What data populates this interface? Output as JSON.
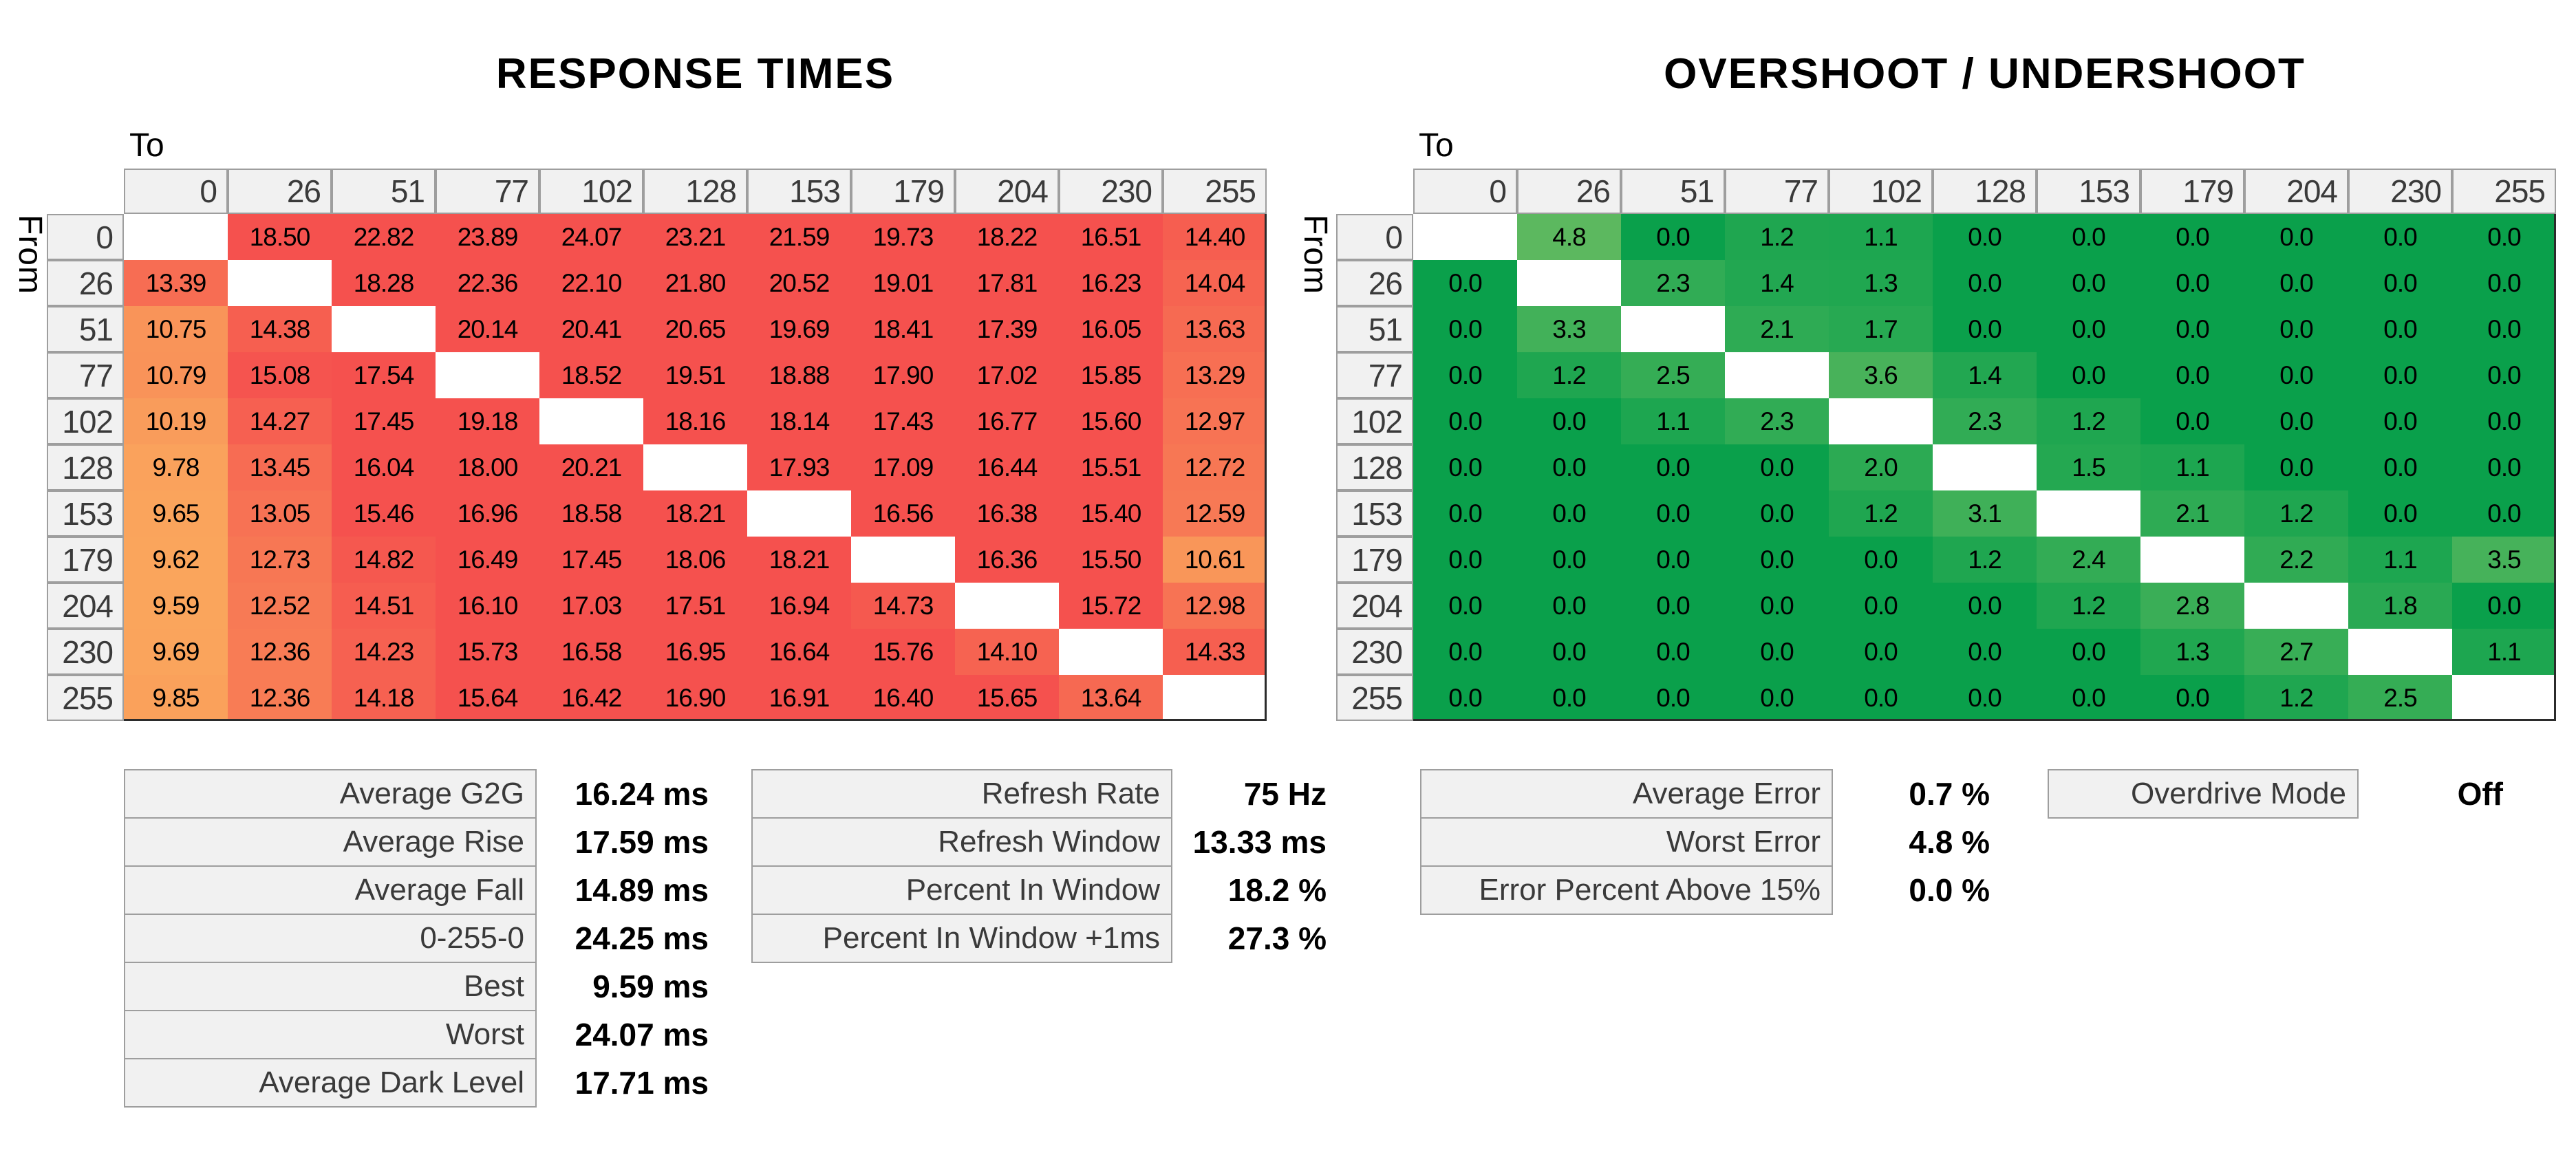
{
  "chart_data": [
    {
      "id": "response_times",
      "type": "heatmap",
      "title": "RESPONSE TIMES",
      "unit": "ms",
      "decimals": 2,
      "x_label": "To",
      "y_label": "From",
      "categories": [
        0,
        26,
        51,
        77,
        102,
        128,
        153,
        179,
        204,
        230,
        255
      ],
      "values": [
        [
          null,
          18.5,
          22.82,
          23.89,
          24.07,
          23.21,
          21.59,
          19.73,
          18.22,
          16.51,
          14.4
        ],
        [
          13.39,
          null,
          18.28,
          22.36,
          22.1,
          21.8,
          20.52,
          19.01,
          17.81,
          16.23,
          14.04
        ],
        [
          10.75,
          14.38,
          null,
          20.14,
          20.41,
          20.65,
          19.69,
          18.41,
          17.39,
          16.05,
          13.63
        ],
        [
          10.79,
          15.08,
          17.54,
          null,
          18.52,
          19.51,
          18.88,
          17.9,
          17.02,
          15.85,
          13.29
        ],
        [
          10.19,
          14.27,
          17.45,
          19.18,
          null,
          18.16,
          18.14,
          17.43,
          16.77,
          15.6,
          12.97
        ],
        [
          9.78,
          13.45,
          16.04,
          18.0,
          20.21,
          null,
          17.93,
          17.09,
          16.44,
          15.51,
          12.72
        ],
        [
          9.65,
          13.05,
          15.46,
          16.96,
          18.58,
          18.21,
          null,
          16.56,
          16.38,
          15.4,
          12.59
        ],
        [
          9.62,
          12.73,
          14.82,
          16.49,
          17.45,
          18.06,
          18.21,
          null,
          16.36,
          15.5,
          10.61
        ],
        [
          9.59,
          12.52,
          14.51,
          16.1,
          17.03,
          17.51,
          16.94,
          14.73,
          null,
          15.72,
          12.98
        ],
        [
          9.69,
          12.36,
          14.23,
          15.73,
          16.58,
          16.95,
          16.64,
          15.76,
          14.1,
          null,
          14.33
        ],
        [
          9.85,
          12.36,
          14.18,
          15.64,
          16.42,
          16.9,
          16.91,
          16.4,
          15.65,
          13.64,
          null
        ]
      ],
      "color_scale": {
        "min": 9.59,
        "max": 15.3,
        "from": "#FAA55C",
        "to": "#F5514E",
        "empty": "#FFFFFF"
      }
    },
    {
      "id": "overshoot_undershoot",
      "type": "heatmap",
      "title": "OVERSHOOT / UNDERSHOOT",
      "unit": "%",
      "decimals": 1,
      "x_label": "To",
      "y_label": "From",
      "categories": [
        0,
        26,
        51,
        77,
        102,
        128,
        153,
        179,
        204,
        230,
        255
      ],
      "values": [
        [
          null,
          4.8,
          0.0,
          1.2,
          1.1,
          0.0,
          0.0,
          0.0,
          0.0,
          0.0,
          0.0
        ],
        [
          0.0,
          null,
          2.3,
          1.4,
          1.3,
          0.0,
          0.0,
          0.0,
          0.0,
          0.0,
          0.0
        ],
        [
          0.0,
          3.3,
          null,
          2.1,
          1.7,
          0.0,
          0.0,
          0.0,
          0.0,
          0.0,
          0.0
        ],
        [
          0.0,
          1.2,
          2.5,
          null,
          3.6,
          1.4,
          0.0,
          0.0,
          0.0,
          0.0,
          0.0
        ],
        [
          0.0,
          0.0,
          1.1,
          2.3,
          null,
          2.3,
          1.2,
          0.0,
          0.0,
          0.0,
          0.0
        ],
        [
          0.0,
          0.0,
          0.0,
          0.0,
          2.0,
          null,
          1.5,
          1.1,
          0.0,
          0.0,
          0.0
        ],
        [
          0.0,
          0.0,
          0.0,
          0.0,
          1.2,
          3.1,
          null,
          2.1,
          1.2,
          0.0,
          0.0
        ],
        [
          0.0,
          0.0,
          0.0,
          0.0,
          0.0,
          1.2,
          2.4,
          null,
          2.2,
          1.1,
          3.5
        ],
        [
          0.0,
          0.0,
          0.0,
          0.0,
          0.0,
          0.0,
          1.2,
          2.8,
          null,
          1.8,
          0.0
        ],
        [
          0.0,
          0.0,
          0.0,
          0.0,
          0.0,
          0.0,
          0.0,
          1.3,
          2.7,
          null,
          1.1
        ],
        [
          0.0,
          0.0,
          0.0,
          0.0,
          0.0,
          0.0,
          0.0,
          0.0,
          1.2,
          2.5,
          null
        ]
      ],
      "color_scale": {
        "min": 0.0,
        "max": 4.8,
        "from": "#0AA04B",
        "to": "#5CB85F",
        "empty": "#FFFFFF"
      }
    }
  ],
  "stats_blocks": [
    {
      "id": "response_stats",
      "rows": [
        {
          "label": "Average G2G",
          "value": "16.24 ms"
        },
        {
          "label": "Average Rise",
          "value": "17.59 ms"
        },
        {
          "label": "Average Fall",
          "value": "14.89 ms"
        },
        {
          "label": "0-255-0",
          "value": "24.25 ms"
        },
        {
          "label": "Best",
          "value": "9.59 ms"
        },
        {
          "label": "Worst",
          "value": "24.07 ms"
        },
        {
          "label": "Average Dark Level",
          "value": "17.71 ms"
        }
      ]
    },
    {
      "id": "refresh_stats",
      "rows": [
        {
          "label": "Refresh Rate",
          "value": "75 Hz"
        },
        {
          "label": "Refresh Window",
          "value": "13.33 ms"
        },
        {
          "label": "Percent In Window",
          "value": "18.2 %"
        },
        {
          "label": "Percent In Window +1ms",
          "value": "27.3 %"
        }
      ]
    },
    {
      "id": "error_stats",
      "rows": [
        {
          "label": "Average Error",
          "value": "0.7 %"
        },
        {
          "label": "Worst Error",
          "value": "4.8 %"
        },
        {
          "label": "Error Percent Above 15%",
          "value": "0.0 %"
        }
      ]
    },
    {
      "id": "overdrive",
      "rows": [
        {
          "label": "Overdrive Mode",
          "value": "Off"
        }
      ]
    }
  ]
}
